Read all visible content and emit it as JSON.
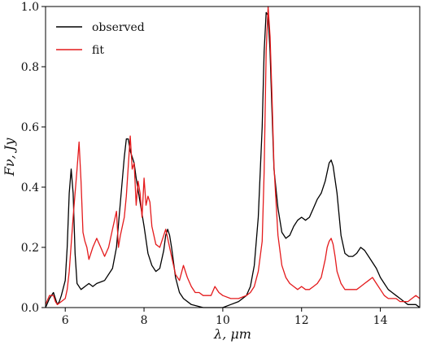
{
  "chart_data": {
    "type": "line",
    "title": "",
    "xlabel": "λ, μm",
    "ylabel": "Fν, Jy",
    "xlim": [
      5.5,
      15.0
    ],
    "ylim": [
      0.0,
      1.0
    ],
    "xticks": [
      6,
      8,
      10,
      12,
      14
    ],
    "yticks": [
      0.0,
      0.2,
      0.4,
      0.6,
      0.8,
      1.0
    ],
    "ytick_labels": [
      "0.0",
      "0.2",
      "0.4",
      "0.6",
      "0.8",
      "1.0"
    ],
    "grid": false,
    "legend_position": "top-left",
    "series": [
      {
        "name": "observed",
        "color": "#000000",
        "x": [
          5.5,
          5.6,
          5.7,
          5.75,
          5.8,
          5.85,
          5.9,
          6.0,
          6.05,
          6.1,
          6.15,
          6.2,
          6.25,
          6.3,
          6.4,
          6.5,
          6.6,
          6.7,
          6.8,
          7.0,
          7.2,
          7.3,
          7.4,
          7.5,
          7.55,
          7.6,
          7.65,
          7.7,
          7.75,
          7.8,
          7.9,
          8.0,
          8.1,
          8.2,
          8.3,
          8.4,
          8.5,
          8.55,
          8.6,
          8.65,
          8.7,
          8.8,
          8.9,
          9.0,
          9.2,
          9.5,
          9.8,
          10.0,
          10.2,
          10.4,
          10.6,
          10.7,
          10.8,
          10.9,
          11.0,
          11.05,
          11.1,
          11.15,
          11.2,
          11.25,
          11.3,
          11.4,
          11.5,
          11.6,
          11.7,
          11.8,
          11.9,
          12.0,
          12.1,
          12.2,
          12.3,
          12.4,
          12.5,
          12.6,
          12.7,
          12.75,
          12.8,
          12.9,
          13.0,
          13.1,
          13.2,
          13.3,
          13.4,
          13.5,
          13.6,
          13.7,
          13.8,
          13.9,
          14.0,
          14.1,
          14.2,
          14.3,
          14.4,
          14.5,
          14.6,
          14.7,
          14.8,
          14.9,
          15.0
        ],
        "y": [
          0.0,
          0.03,
          0.05,
          0.03,
          0.01,
          0.02,
          0.04,
          0.09,
          0.2,
          0.38,
          0.46,
          0.38,
          0.18,
          0.08,
          0.06,
          0.07,
          0.08,
          0.07,
          0.08,
          0.09,
          0.13,
          0.2,
          0.35,
          0.5,
          0.56,
          0.56,
          0.52,
          0.5,
          0.48,
          0.43,
          0.35,
          0.27,
          0.18,
          0.14,
          0.12,
          0.13,
          0.19,
          0.24,
          0.26,
          0.24,
          0.2,
          0.1,
          0.05,
          0.03,
          0.01,
          0.0,
          0.0,
          0.0,
          0.01,
          0.02,
          0.04,
          0.07,
          0.14,
          0.3,
          0.6,
          0.85,
          0.98,
          0.97,
          0.85,
          0.65,
          0.46,
          0.33,
          0.25,
          0.23,
          0.24,
          0.27,
          0.29,
          0.3,
          0.29,
          0.3,
          0.33,
          0.36,
          0.38,
          0.42,
          0.48,
          0.49,
          0.47,
          0.38,
          0.24,
          0.18,
          0.17,
          0.17,
          0.18,
          0.2,
          0.19,
          0.17,
          0.15,
          0.13,
          0.1,
          0.08,
          0.06,
          0.05,
          0.04,
          0.03,
          0.02,
          0.01,
          0.01,
          0.01,
          0.0
        ]
      },
      {
        "name": "fit",
        "color": "#e41a1c",
        "x": [
          5.5,
          5.6,
          5.7,
          5.75,
          5.8,
          5.9,
          6.0,
          6.05,
          6.1,
          6.2,
          6.3,
          6.35,
          6.4,
          6.45,
          6.5,
          6.55,
          6.6,
          6.7,
          6.8,
          6.9,
          7.0,
          7.1,
          7.2,
          7.3,
          7.35,
          7.4,
          7.5,
          7.55,
          7.6,
          7.65,
          7.7,
          7.75,
          7.8,
          7.85,
          7.9,
          7.95,
          8.0,
          8.05,
          8.1,
          8.15,
          8.2,
          8.3,
          8.4,
          8.5,
          8.55,
          8.6,
          8.7,
          8.8,
          8.9,
          9.0,
          9.1,
          9.2,
          9.3,
          9.4,
          9.5,
          9.6,
          9.7,
          9.8,
          9.9,
          10.0,
          10.2,
          10.4,
          10.6,
          10.7,
          10.8,
          10.9,
          11.0,
          11.05,
          11.1,
          11.15,
          11.2,
          11.25,
          11.3,
          11.4,
          11.5,
          11.6,
          11.7,
          11.8,
          11.9,
          12.0,
          12.1,
          12.2,
          12.3,
          12.4,
          12.5,
          12.6,
          12.65,
          12.7,
          12.75,
          12.8,
          12.85,
          12.9,
          13.0,
          13.1,
          13.2,
          13.3,
          13.4,
          13.5,
          13.6,
          13.7,
          13.8,
          13.9,
          14.0,
          14.1,
          14.2,
          14.3,
          14.4,
          14.5,
          14.6,
          14.7,
          14.8,
          14.9,
          15.0
        ],
        "y": [
          0.01,
          0.04,
          0.04,
          0.02,
          0.01,
          0.02,
          0.03,
          0.06,
          0.12,
          0.3,
          0.46,
          0.55,
          0.42,
          0.25,
          0.22,
          0.2,
          0.16,
          0.2,
          0.23,
          0.2,
          0.17,
          0.2,
          0.26,
          0.32,
          0.2,
          0.24,
          0.3,
          0.37,
          0.47,
          0.57,
          0.46,
          0.48,
          0.34,
          0.42,
          0.38,
          0.3,
          0.43,
          0.34,
          0.37,
          0.35,
          0.27,
          0.21,
          0.2,
          0.24,
          0.26,
          0.23,
          0.17,
          0.11,
          0.09,
          0.14,
          0.1,
          0.07,
          0.05,
          0.05,
          0.04,
          0.04,
          0.04,
          0.07,
          0.05,
          0.04,
          0.03,
          0.03,
          0.04,
          0.05,
          0.07,
          0.12,
          0.22,
          0.45,
          0.85,
          1.0,
          0.9,
          0.7,
          0.47,
          0.24,
          0.14,
          0.1,
          0.08,
          0.07,
          0.06,
          0.07,
          0.06,
          0.06,
          0.07,
          0.08,
          0.1,
          0.16,
          0.2,
          0.22,
          0.23,
          0.21,
          0.17,
          0.12,
          0.08,
          0.06,
          0.06,
          0.06,
          0.06,
          0.07,
          0.08,
          0.09,
          0.1,
          0.08,
          0.06,
          0.04,
          0.03,
          0.03,
          0.03,
          0.02,
          0.02,
          0.02,
          0.03,
          0.04,
          0.03
        ]
      }
    ]
  }
}
